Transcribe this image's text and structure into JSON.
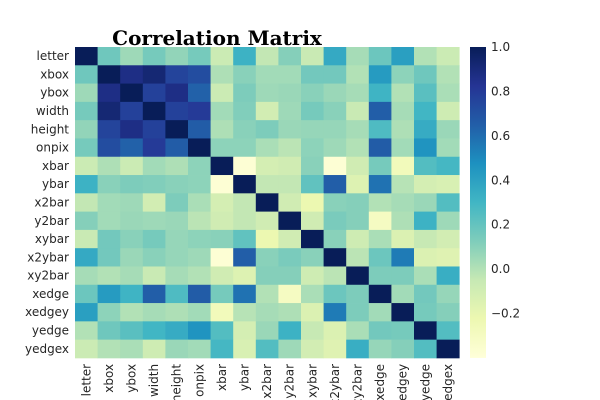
{
  "chart_data": {
    "type": "heatmap",
    "title": "Correlation Matrix",
    "rows": [
      "letter",
      "xbox",
      "ybox",
      "width",
      "height",
      "onpix",
      "xbar",
      "ybar",
      "x2bar",
      "y2bar",
      "xybar",
      "x2ybar",
      "xy2bar",
      "xedge",
      "xedgey",
      "yedge",
      "yedgex"
    ],
    "columns": [
      "letter",
      "xbox",
      "ybox",
      "width",
      "height",
      "onpix",
      "xbar",
      "ybar",
      "x2bar",
      "y2bar",
      "xybar",
      "x2ybar",
      "xy2bar",
      "xedge",
      "xedgey",
      "yedge",
      "yedgex"
    ],
    "column_tick_labels": [
      "letter",
      "xbox",
      "ybox",
      "width",
      "height",
      "onpix",
      "xbar",
      "ybar",
      "x2bar",
      "y2bar",
      "xybar",
      "x2ybar",
      "xy2bar",
      "xedge",
      "xedgey",
      "yedge",
      "yedgex"
    ],
    "values": [
      [
        1.0,
        0.17,
        0.05,
        0.15,
        0.08,
        0.15,
        -0.07,
        0.32,
        -0.04,
        0.11,
        -0.06,
        0.36,
        0.03,
        0.18,
        0.41,
        0.0,
        -0.07
      ],
      [
        0.17,
        1.0,
        0.87,
        0.92,
        0.76,
        0.72,
        0.01,
        0.1,
        0.04,
        0.04,
        0.16,
        0.16,
        0.0,
        0.43,
        0.09,
        0.17,
        0.0
      ],
      [
        0.05,
        0.87,
        1.0,
        0.77,
        0.87,
        0.64,
        -0.07,
        0.13,
        0.05,
        0.06,
        0.1,
        0.06,
        0.03,
        0.31,
        0.0,
        0.23,
        0.02
      ],
      [
        0.15,
        0.92,
        0.77,
        1.0,
        0.77,
        0.8,
        0.04,
        0.12,
        -0.1,
        0.05,
        0.15,
        0.1,
        -0.06,
        0.65,
        0.03,
        0.3,
        -0.08
      ],
      [
        0.08,
        0.76,
        0.87,
        0.77,
        1.0,
        0.66,
        0.01,
        0.1,
        0.13,
        0.06,
        0.07,
        0.07,
        0.03,
        0.26,
        0.01,
        0.35,
        0.06
      ],
      [
        0.15,
        0.72,
        0.64,
        0.8,
        0.66,
        1.0,
        0.09,
        0.09,
        0.02,
        -0.02,
        0.09,
        0.05,
        0.0,
        0.66,
        0.04,
        0.46,
        0.04
      ],
      [
        -0.07,
        0.01,
        -0.07,
        0.04,
        0.01,
        0.09,
        1.0,
        -0.38,
        -0.11,
        -0.09,
        0.1,
        -0.38,
        -0.09,
        0.15,
        -0.27,
        0.25,
        0.29
      ],
      [
        0.32,
        0.1,
        0.13,
        0.12,
        0.1,
        0.09,
        -0.38,
        1.0,
        -0.04,
        -0.04,
        0.21,
        0.65,
        -0.15,
        0.58,
        -0.01,
        -0.11,
        -0.13
      ],
      [
        -0.04,
        0.04,
        0.05,
        -0.1,
        0.13,
        0.02,
        -0.11,
        -0.04,
        1.0,
        -0.09,
        -0.22,
        0.1,
        0.11,
        0.0,
        0.03,
        0.06,
        0.25
      ],
      [
        0.11,
        0.04,
        0.06,
        0.05,
        0.06,
        -0.02,
        -0.09,
        -0.04,
        -0.09,
        1.0,
        -0.09,
        0.14,
        0.11,
        -0.3,
        0.01,
        0.32,
        0.05
      ],
      [
        -0.06,
        0.16,
        0.1,
        0.15,
        0.07,
        0.09,
        0.1,
        0.21,
        -0.22,
        -0.09,
        1.0,
        0.1,
        -0.08,
        0.02,
        -0.14,
        -0.05,
        -0.1
      ],
      [
        0.36,
        0.16,
        0.06,
        0.1,
        0.07,
        0.05,
        -0.38,
        0.65,
        0.1,
        0.14,
        0.1,
        1.0,
        -0.02,
        0.18,
        0.55,
        -0.14,
        -0.16
      ],
      [
        0.03,
        0.0,
        0.03,
        -0.06,
        0.03,
        0.0,
        -0.09,
        -0.15,
        0.11,
        0.11,
        -0.08,
        -0.02,
        1.0,
        0.13,
        0.13,
        0.02,
        0.34
      ],
      [
        0.18,
        0.43,
        0.31,
        0.65,
        0.26,
        0.66,
        0.15,
        0.58,
        0.0,
        -0.3,
        0.02,
        0.18,
        0.13,
        1.0,
        0.04,
        0.16,
        0.07
      ],
      [
        0.41,
        0.09,
        0.0,
        0.03,
        0.01,
        0.04,
        -0.27,
        -0.01,
        0.03,
        0.01,
        -0.14,
        0.55,
        0.13,
        0.04,
        1.0,
        0.15,
        0.11
      ],
      [
        0.0,
        0.17,
        0.23,
        0.3,
        0.35,
        0.46,
        0.25,
        -0.11,
        0.06,
        0.32,
        -0.05,
        -0.14,
        0.02,
        0.16,
        0.15,
        1.0,
        0.25
      ],
      [
        -0.07,
        0.0,
        0.02,
        -0.08,
        0.06,
        0.04,
        0.29,
        -0.13,
        0.25,
        0.05,
        -0.1,
        -0.16,
        0.34,
        0.07,
        0.11,
        0.25,
        1.0
      ]
    ],
    "colorbar": {
      "ticks": [
        1.0,
        0.8,
        0.6,
        0.4,
        0.2,
        0.0,
        -0.2
      ],
      "labels": [
        "1.0",
        "0.8",
        "0.6",
        "0.4",
        "0.2",
        "0.0",
        "−0.2"
      ],
      "vmin": -0.4,
      "vmax": 1.0
    },
    "colormap": "YlGnBu",
    "colormap_stops": [
      "#ffffd9",
      "#edf8b1",
      "#c7e9b4",
      "#7fcdbb",
      "#41b6c4",
      "#1d91c0",
      "#225ea8",
      "#253494",
      "#081d58"
    ],
    "grid": false
  }
}
